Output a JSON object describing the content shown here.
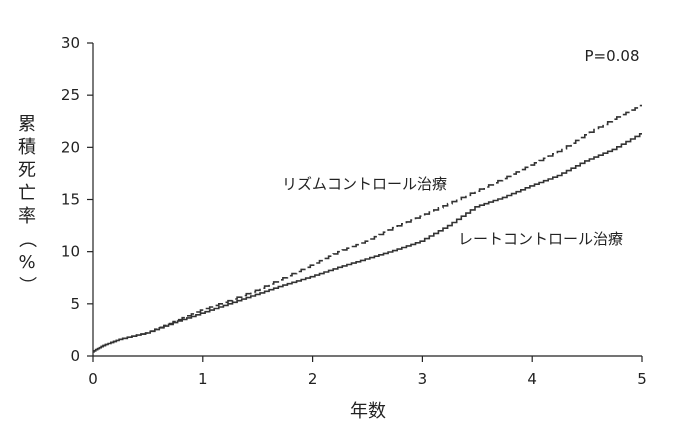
{
  "chart_data": {
    "type": "line",
    "title": "",
    "xlabel": "年数",
    "ylabel": "累積死亡率（%）",
    "xlim": [
      0,
      5
    ],
    "ylim": [
      0,
      30
    ],
    "xticks": [
      0,
      1,
      2,
      3,
      4,
      5
    ],
    "yticks": [
      0,
      5,
      10,
      15,
      20,
      25,
      30
    ],
    "grid": false,
    "annotations": {
      "p_value": "P=0.08"
    },
    "series": [
      {
        "name": "リズムコントロール治療",
        "style": "dashed",
        "color": "#333333",
        "x": [
          0,
          0.1,
          0.25,
          0.5,
          0.75,
          1.0,
          1.25,
          1.5,
          1.75,
          2.0,
          2.25,
          2.5,
          2.75,
          3.0,
          3.25,
          3.5,
          3.75,
          4.0,
          4.25,
          4.5,
          4.75,
          5.0
        ],
        "y": [
          0.4,
          1.0,
          1.6,
          2.2,
          3.3,
          4.4,
          5.3,
          6.3,
          7.5,
          8.7,
          10.0,
          11.0,
          12.3,
          13.4,
          14.6,
          15.8,
          17.0,
          18.3,
          19.6,
          21.2,
          22.7,
          24.0
        ]
      },
      {
        "name": "レートコントロール治療",
        "style": "solid",
        "color": "#333333",
        "x": [
          0,
          0.1,
          0.25,
          0.5,
          0.75,
          1.0,
          1.25,
          1.5,
          1.75,
          2.0,
          2.25,
          2.5,
          2.75,
          3.0,
          3.25,
          3.5,
          3.75,
          4.0,
          4.25,
          4.5,
          4.75,
          5.0
        ],
        "y": [
          0.4,
          1.0,
          1.6,
          2.2,
          3.2,
          4.1,
          5.0,
          5.9,
          6.8,
          7.6,
          8.5,
          9.3,
          10.1,
          11.0,
          12.5,
          14.3,
          15.2,
          16.3,
          17.3,
          18.7,
          19.8,
          21.3
        ]
      }
    ]
  }
}
